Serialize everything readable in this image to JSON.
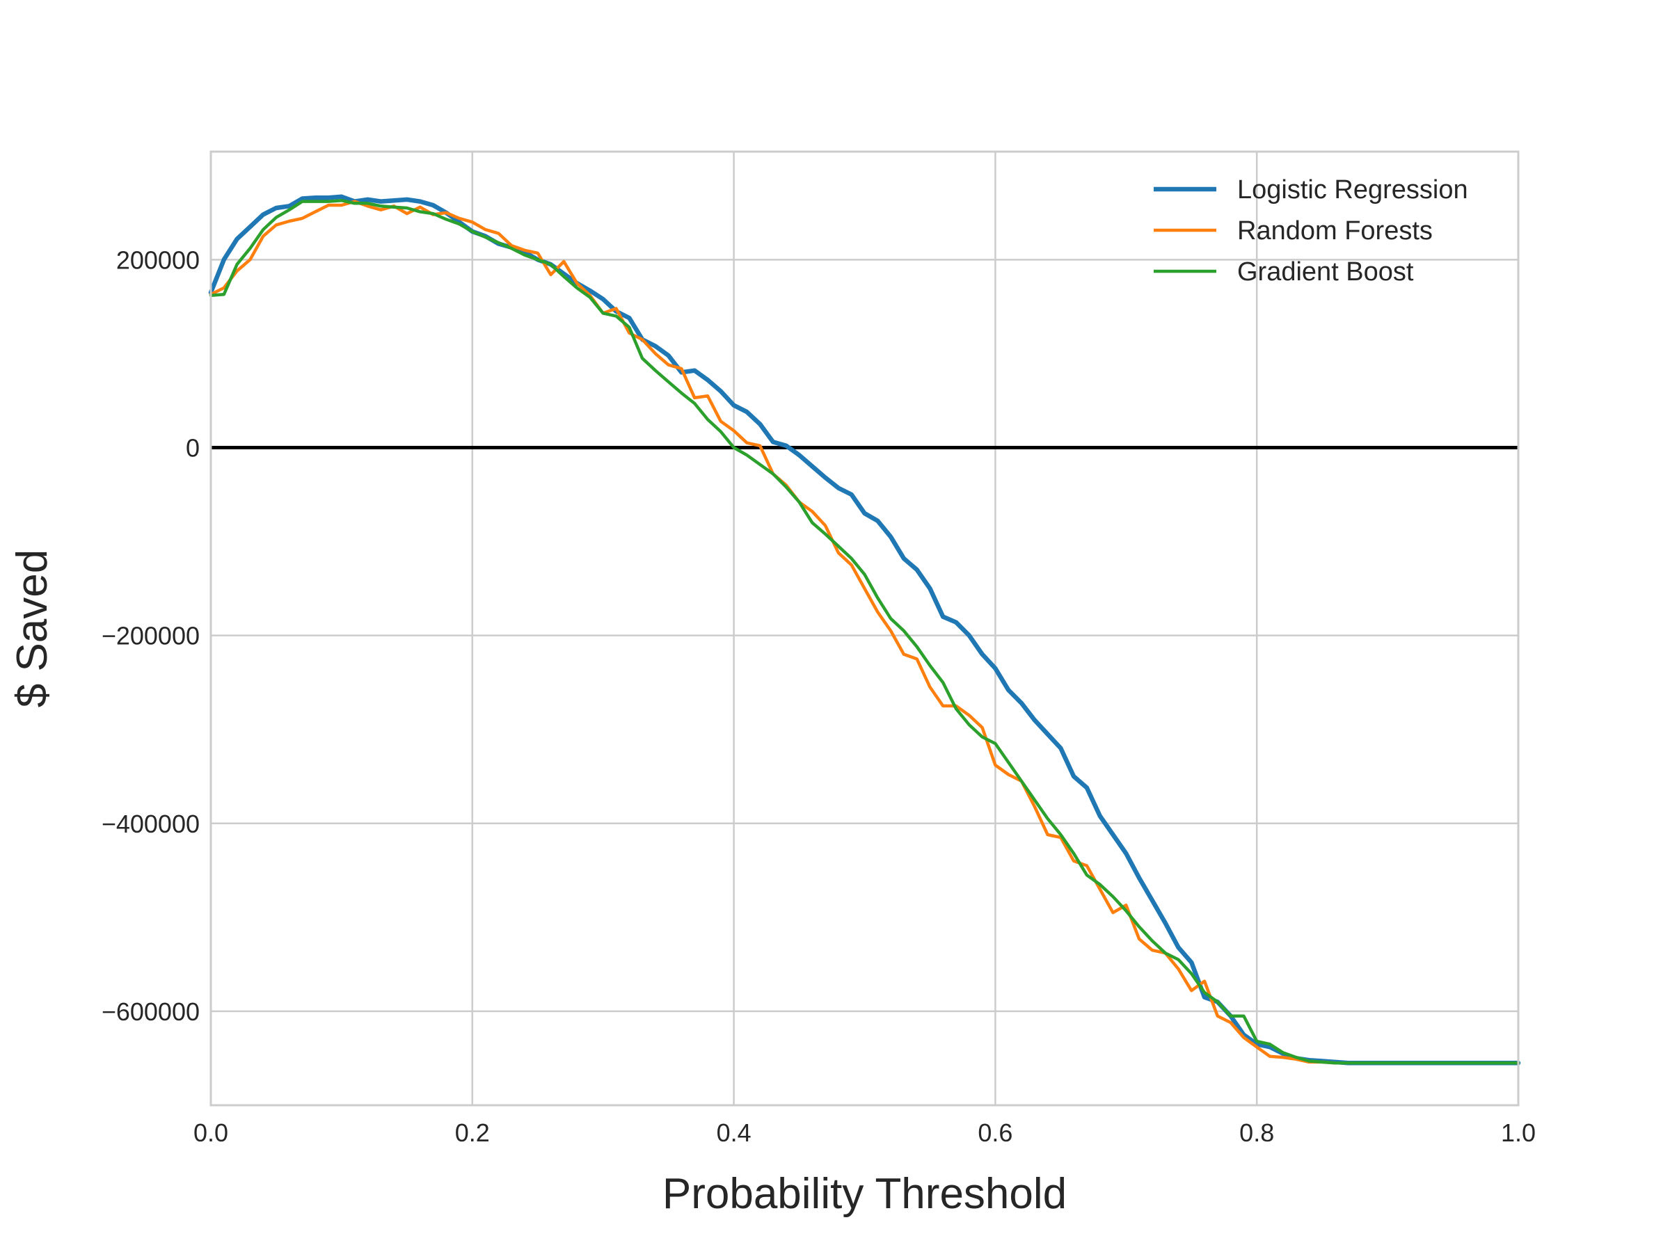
{
  "chart_data": {
    "type": "line",
    "title": "",
    "xlabel": "Probability Threshold",
    "ylabel": "$ Saved",
    "xlim": [
      0.0,
      1.0
    ],
    "ylim": [
      -700000,
      315000
    ],
    "xticks": [
      0.0,
      0.2,
      0.4,
      0.6,
      0.8,
      1.0
    ],
    "xtick_labels": [
      "0.0",
      "0.2",
      "0.4",
      "0.6",
      "0.8",
      "1.0"
    ],
    "yticks": [
      200000,
      0,
      -200000,
      -400000,
      -600000
    ],
    "ytick_labels": [
      "200000",
      "0",
      "−200000",
      "−400000",
      "−600000"
    ],
    "grid": true,
    "legend_position": "top-right",
    "reference_line": {
      "y": 0,
      "color": "#000000"
    },
    "series": [
      {
        "name": "Logistic Regression",
        "color": "#1f77b4",
        "x": [
          0.0,
          0.01,
          0.02,
          0.03,
          0.04,
          0.05,
          0.06,
          0.07,
          0.08,
          0.09,
          0.1,
          0.11,
          0.12,
          0.13,
          0.14,
          0.15,
          0.16,
          0.17,
          0.18,
          0.19,
          0.2,
          0.21,
          0.22,
          0.23,
          0.24,
          0.25,
          0.26,
          0.27,
          0.28,
          0.29,
          0.3,
          0.31,
          0.32,
          0.33,
          0.34,
          0.35,
          0.36,
          0.37,
          0.38,
          0.39,
          0.4,
          0.41,
          0.42,
          0.43,
          0.44,
          0.45,
          0.46,
          0.47,
          0.48,
          0.49,
          0.5,
          0.51,
          0.52,
          0.53,
          0.54,
          0.55,
          0.56,
          0.57,
          0.58,
          0.59,
          0.6,
          0.61,
          0.62,
          0.63,
          0.64,
          0.65,
          0.66,
          0.67,
          0.68,
          0.69,
          0.7,
          0.71,
          0.72,
          0.73,
          0.74,
          0.75,
          0.76,
          0.77,
          0.78,
          0.79,
          0.8,
          0.81,
          0.82,
          0.83,
          0.84,
          0.85,
          0.86,
          0.87,
          0.88,
          0.89,
          0.9,
          0.92,
          0.94,
          0.96,
          0.98,
          1.0
        ],
        "y": [
          165000,
          200000,
          222000,
          235000,
          248000,
          255000,
          257000,
          265000,
          266000,
          266000,
          267000,
          262000,
          264000,
          262000,
          263000,
          264000,
          262000,
          258000,
          250000,
          240000,
          230000,
          225000,
          217000,
          213000,
          208000,
          200000,
          195000,
          185000,
          175000,
          167000,
          158000,
          145000,
          138000,
          115000,
          108000,
          98000,
          80000,
          82000,
          72000,
          60000,
          45000,
          38000,
          25000,
          6000,
          2000,
          -8000,
          -20000,
          -32000,
          -43000,
          -50000,
          -70000,
          -78000,
          -95000,
          -118000,
          -130000,
          -150000,
          -180000,
          -186000,
          -200000,
          -220000,
          -235000,
          -258000,
          -272000,
          -290000,
          -305000,
          -320000,
          -350000,
          -362000,
          -392000,
          -412000,
          -432000,
          -458000,
          -482000,
          -506000,
          -532000,
          -548000,
          -585000,
          -590000,
          -605000,
          -625000,
          -635000,
          -638000,
          -645000,
          -650000,
          -652000,
          -653000,
          -654000,
          -655000,
          -655000,
          -655000,
          -655000,
          -655000,
          -655000,
          -655000,
          -655000,
          -655000
        ]
      },
      {
        "name": "Random Forests",
        "color": "#ff7f0e",
        "x": [
          0.0,
          0.01,
          0.02,
          0.03,
          0.04,
          0.05,
          0.06,
          0.07,
          0.08,
          0.09,
          0.1,
          0.11,
          0.12,
          0.13,
          0.14,
          0.15,
          0.16,
          0.17,
          0.18,
          0.19,
          0.2,
          0.21,
          0.22,
          0.23,
          0.24,
          0.25,
          0.26,
          0.27,
          0.28,
          0.29,
          0.3,
          0.31,
          0.32,
          0.33,
          0.34,
          0.35,
          0.36,
          0.37,
          0.38,
          0.39,
          0.4,
          0.41,
          0.42,
          0.43,
          0.44,
          0.45,
          0.46,
          0.47,
          0.48,
          0.49,
          0.5,
          0.51,
          0.52,
          0.53,
          0.54,
          0.55,
          0.56,
          0.57,
          0.58,
          0.59,
          0.6,
          0.61,
          0.62,
          0.63,
          0.64,
          0.65,
          0.66,
          0.67,
          0.68,
          0.69,
          0.7,
          0.71,
          0.72,
          0.73,
          0.74,
          0.75,
          0.76,
          0.77,
          0.78,
          0.79,
          0.8,
          0.81,
          0.82,
          0.83,
          0.84,
          0.85,
          0.86,
          0.87,
          0.88,
          0.89,
          0.9,
          0.92,
          0.94,
          0.96,
          0.98,
          1.0
        ],
        "y": [
          163000,
          170000,
          188000,
          200000,
          225000,
          237000,
          241000,
          244000,
          251000,
          258000,
          258000,
          262000,
          257000,
          253000,
          257000,
          249000,
          256000,
          248000,
          250000,
          244000,
          240000,
          232000,
          228000,
          215000,
          210000,
          207000,
          184000,
          198000,
          175000,
          162000,
          143000,
          148000,
          122000,
          115000,
          100000,
          88000,
          84000,
          53000,
          55000,
          28000,
          18000,
          5000,
          2000,
          -28000,
          -40000,
          -58000,
          -68000,
          -83000,
          -112000,
          -125000,
          -150000,
          -175000,
          -195000,
          -220000,
          -225000,
          -255000,
          -275000,
          -275000,
          -285000,
          -298000,
          -338000,
          -348000,
          -355000,
          -382000,
          -412000,
          -415000,
          -440000,
          -445000,
          -470000,
          -495000,
          -487000,
          -523000,
          -535000,
          -538000,
          -555000,
          -578000,
          -568000,
          -605000,
          -612000,
          -628000,
          -638000,
          -648000,
          -649000,
          -651000,
          -654000,
          -654000,
          -655000,
          -655000,
          -655000,
          -655000,
          -655000,
          -655000,
          -655000,
          -655000,
          -655000,
          -655000
        ]
      },
      {
        "name": "Gradient Boost",
        "color": "#2ca02c",
        "x": [
          0.0,
          0.01,
          0.02,
          0.03,
          0.04,
          0.05,
          0.06,
          0.07,
          0.08,
          0.09,
          0.1,
          0.11,
          0.12,
          0.13,
          0.14,
          0.15,
          0.16,
          0.17,
          0.18,
          0.19,
          0.2,
          0.21,
          0.22,
          0.23,
          0.24,
          0.25,
          0.26,
          0.27,
          0.28,
          0.29,
          0.3,
          0.31,
          0.32,
          0.33,
          0.34,
          0.35,
          0.36,
          0.37,
          0.38,
          0.39,
          0.4,
          0.41,
          0.42,
          0.43,
          0.44,
          0.45,
          0.46,
          0.47,
          0.48,
          0.49,
          0.5,
          0.51,
          0.52,
          0.53,
          0.54,
          0.55,
          0.56,
          0.57,
          0.58,
          0.59,
          0.6,
          0.61,
          0.62,
          0.63,
          0.64,
          0.65,
          0.66,
          0.67,
          0.68,
          0.69,
          0.7,
          0.71,
          0.72,
          0.73,
          0.74,
          0.75,
          0.76,
          0.77,
          0.78,
          0.79,
          0.8,
          0.81,
          0.82,
          0.83,
          0.84,
          0.85,
          0.86,
          0.87,
          0.88,
          0.89,
          0.9,
          0.92,
          0.94,
          0.96,
          0.98,
          1.0
        ],
        "y": [
          162000,
          163000,
          195000,
          212000,
          232000,
          245000,
          253000,
          262000,
          262000,
          262000,
          263000,
          260000,
          260000,
          257000,
          256000,
          255000,
          251000,
          249000,
          243000,
          238000,
          230000,
          224000,
          218000,
          212000,
          205000,
          200000,
          195000,
          182000,
          170000,
          160000,
          143000,
          140000,
          128000,
          95000,
          82000,
          70000,
          58000,
          47000,
          30000,
          17000,
          0,
          -8000,
          -18000,
          -28000,
          -42000,
          -58000,
          -80000,
          -92000,
          -105000,
          -118000,
          -135000,
          -160000,
          -182000,
          -195000,
          -212000,
          -232000,
          -250000,
          -278000,
          -295000,
          -308000,
          -315000,
          -335000,
          -355000,
          -375000,
          -395000,
          -412000,
          -432000,
          -455000,
          -465000,
          -478000,
          -493000,
          -510000,
          -525000,
          -538000,
          -545000,
          -560000,
          -580000,
          -590000,
          -605000,
          -605000,
          -632000,
          -635000,
          -644000,
          -649000,
          -653000,
          -654000,
          -655000,
          -655000,
          -655000,
          -655000,
          -655000,
          -655000,
          -655000,
          -655000,
          -655000,
          -655000
        ]
      }
    ]
  }
}
